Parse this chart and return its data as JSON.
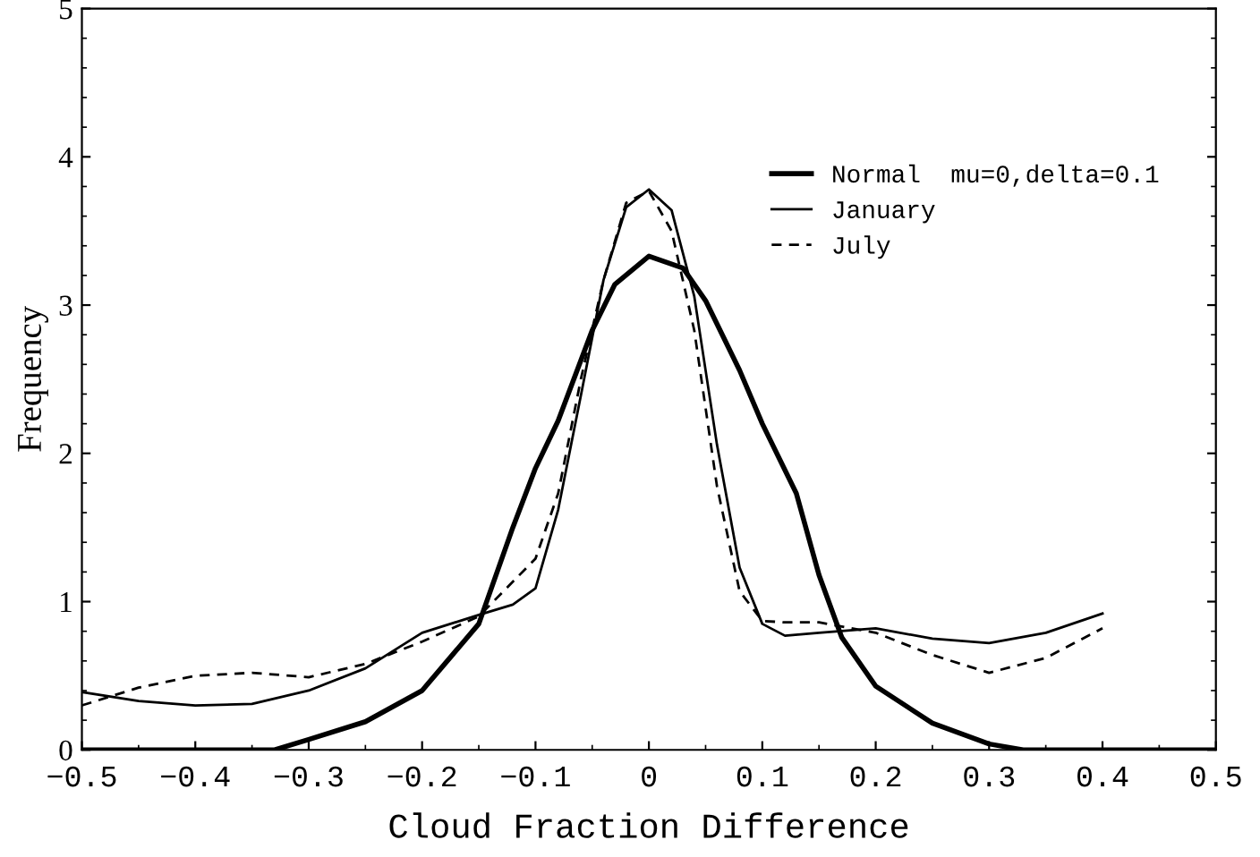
{
  "chart_data": {
    "type": "line",
    "xlabel": "Cloud Fraction Difference",
    "ylabel": "Frequency",
    "xlim": [
      -0.5,
      0.5
    ],
    "ylim": [
      0,
      5
    ],
    "xticks": [
      {
        "value": -0.5,
        "label": "−0.5"
      },
      {
        "value": -0.4,
        "label": "−0.4"
      },
      {
        "value": -0.3,
        "label": "−0.3"
      },
      {
        "value": -0.2,
        "label": "−0.2"
      },
      {
        "value": -0.1,
        "label": "−0.1"
      },
      0,
      0.1,
      0.2,
      0.3,
      0.4,
      0.5
    ],
    "yticks": [
      0,
      1,
      2,
      3,
      4,
      5
    ],
    "grid": false,
    "legend": "top right",
    "marker": "none",
    "series": [
      {
        "name": "Normal  mu=0,delta=0.1",
        "color": "#000000",
        "line_style": "solid",
        "x": [
          -0.5,
          -0.4,
          -0.33,
          -0.3,
          -0.25,
          -0.2,
          -0.15,
          -0.12,
          -0.1,
          -0.08,
          -0.05,
          -0.03,
          0,
          0.03,
          0.05,
          0.08,
          0.1,
          0.13,
          0.15,
          0.17,
          0.2,
          0.25,
          0.3,
          0.33,
          0.4,
          0.5
        ],
        "values": [
          0,
          0,
          0,
          0.07,
          0.19,
          0.4,
          0.85,
          1.5,
          1.9,
          2.22,
          2.83,
          3.14,
          3.33,
          3.25,
          3.03,
          2.56,
          2.2,
          1.73,
          1.18,
          0.76,
          0.43,
          0.18,
          0.04,
          0,
          0,
          0
        ]
      },
      {
        "name": "January",
        "color": "#000000",
        "line_style": "solid",
        "x": [
          -0.5,
          -0.45,
          -0.4,
          -0.35,
          -0.3,
          -0.25,
          -0.2,
          -0.15,
          -0.12,
          -0.1,
          -0.08,
          -0.06,
          -0.04,
          -0.02,
          0,
          0.02,
          0.04,
          0.06,
          0.08,
          0.1,
          0.12,
          0.15,
          0.2,
          0.25,
          0.3,
          0.35,
          0.4
        ],
        "values": [
          0.39,
          0.33,
          0.3,
          0.31,
          0.4,
          0.55,
          0.79,
          0.91,
          0.98,
          1.09,
          1.62,
          2.39,
          3.17,
          3.66,
          3.78,
          3.64,
          3.06,
          2.06,
          1.23,
          0.85,
          0.77,
          0.79,
          0.82,
          0.75,
          0.72,
          0.79,
          0.92
        ]
      },
      {
        "name": "July",
        "color": "#000000",
        "line_style": "dashed",
        "x": [
          -0.5,
          -0.45,
          -0.4,
          -0.35,
          -0.3,
          -0.25,
          -0.2,
          -0.15,
          -0.1,
          -0.08,
          -0.06,
          -0.04,
          -0.02,
          0,
          0.02,
          0.04,
          0.06,
          0.08,
          0.1,
          0.12,
          0.15,
          0.2,
          0.25,
          0.3,
          0.35,
          0.4
        ],
        "values": [
          0.3,
          0.42,
          0.5,
          0.52,
          0.49,
          0.58,
          0.73,
          0.9,
          1.29,
          1.73,
          2.5,
          3.17,
          3.69,
          3.77,
          3.5,
          2.83,
          1.78,
          1.07,
          0.87,
          0.86,
          0.86,
          0.79,
          0.64,
          0.52,
          0.62,
          0.82
        ]
      }
    ]
  }
}
